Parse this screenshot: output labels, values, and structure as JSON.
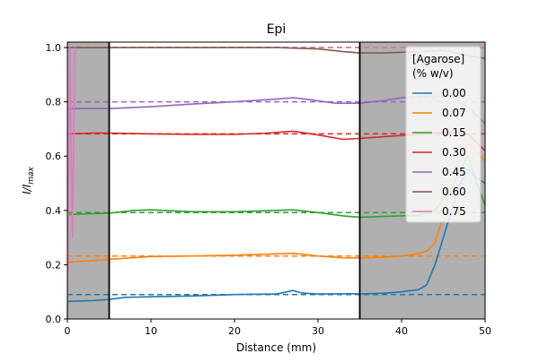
{
  "chart_data": {
    "type": "line",
    "title": "Epi",
    "xlabel": "Distance (mm)",
    "ylabel_main": "I/I",
    "ylabel_sub": "max",
    "xlim": [
      0,
      50
    ],
    "ylim": [
      0,
      1.02
    ],
    "xticks": [
      0,
      10,
      20,
      30,
      40,
      50
    ],
    "yticks": [
      0.0,
      0.2,
      0.4,
      0.6,
      0.8,
      1.0
    ],
    "xtick_labels": [
      "0",
      "10",
      "20",
      "30",
      "40",
      "50"
    ],
    "ytick_labels": [
      "0.0",
      "0.2",
      "0.4",
      "0.6",
      "0.8",
      "1.0"
    ],
    "shaded_regions": [
      [
        0,
        5
      ],
      [
        35,
        50
      ]
    ],
    "shade_color": "#b0b0b0",
    "boundary_lines": [
      5,
      35
    ],
    "legend": {
      "title_line1": "[Agarose]",
      "title_line2": "(% w/v)",
      "placement": "upper-right"
    },
    "series": [
      {
        "name": "0.00",
        "color": "#1f77b4",
        "reference": 0.09,
        "points": [
          [
            0,
            0.065
          ],
          [
            3,
            0.068
          ],
          [
            5,
            0.072
          ],
          [
            7,
            0.08
          ],
          [
            10,
            0.082
          ],
          [
            15,
            0.085
          ],
          [
            20,
            0.09
          ],
          [
            25,
            0.092
          ],
          [
            26,
            0.098
          ],
          [
            27,
            0.105
          ],
          [
            28,
            0.096
          ],
          [
            30,
            0.092
          ],
          [
            34,
            0.093
          ],
          [
            35,
            0.092
          ],
          [
            38,
            0.095
          ],
          [
            40,
            0.1
          ],
          [
            42,
            0.108
          ],
          [
            43,
            0.125
          ],
          [
            44,
            0.2
          ],
          [
            45,
            0.3
          ],
          [
            46,
            0.4
          ],
          [
            47,
            0.5
          ],
          [
            48,
            0.55
          ],
          [
            49,
            0.52
          ],
          [
            50,
            0.5
          ]
        ]
      },
      {
        "name": "0.07",
        "color": "#ff7f0e",
        "reference": 0.232,
        "points": [
          [
            0,
            0.21
          ],
          [
            3,
            0.215
          ],
          [
            5,
            0.22
          ],
          [
            10,
            0.23
          ],
          [
            15,
            0.232
          ],
          [
            20,
            0.235
          ],
          [
            25,
            0.24
          ],
          [
            27,
            0.242
          ],
          [
            30,
            0.232
          ],
          [
            33,
            0.225
          ],
          [
            35,
            0.225
          ],
          [
            38,
            0.228
          ],
          [
            40,
            0.232
          ],
          [
            42,
            0.24
          ],
          [
            43,
            0.25
          ],
          [
            44,
            0.28
          ],
          [
            45,
            0.38
          ],
          [
            46,
            0.5
          ],
          [
            47,
            0.6
          ],
          [
            48,
            0.65
          ],
          [
            49,
            0.62
          ],
          [
            50,
            0.58
          ]
        ]
      },
      {
        "name": "0.15",
        "color": "#2ca02c",
        "reference": 0.392,
        "points": [
          [
            0,
            0.385
          ],
          [
            3,
            0.388
          ],
          [
            5,
            0.39
          ],
          [
            8,
            0.4
          ],
          [
            10,
            0.402
          ],
          [
            15,
            0.395
          ],
          [
            20,
            0.395
          ],
          [
            25,
            0.4
          ],
          [
            27,
            0.402
          ],
          [
            30,
            0.392
          ],
          [
            33,
            0.38
          ],
          [
            35,
            0.375
          ],
          [
            38,
            0.378
          ],
          [
            42,
            0.382
          ],
          [
            44,
            0.4
          ],
          [
            46,
            0.48
          ],
          [
            47,
            0.55
          ],
          [
            48,
            0.6
          ],
          [
            49,
            0.5
          ],
          [
            50,
            0.42
          ]
        ]
      },
      {
        "name": "0.30",
        "color": "#d62728",
        "reference": 0.682,
        "points": [
          [
            0,
            0.682
          ],
          [
            3,
            0.685
          ],
          [
            5,
            0.685
          ],
          [
            10,
            0.682
          ],
          [
            15,
            0.68
          ],
          [
            20,
            0.68
          ],
          [
            24,
            0.685
          ],
          [
            27,
            0.692
          ],
          [
            30,
            0.678
          ],
          [
            33,
            0.662
          ],
          [
            35,
            0.665
          ],
          [
            38,
            0.672
          ],
          [
            42,
            0.68
          ],
          [
            46,
            0.69
          ],
          [
            48,
            0.68
          ],
          [
            50,
            0.62
          ]
        ]
      },
      {
        "name": "0.45",
        "color": "#9467bd",
        "reference": 0.8,
        "points": [
          [
            0,
            0.775
          ],
          [
            5,
            0.775
          ],
          [
            10,
            0.782
          ],
          [
            15,
            0.792
          ],
          [
            20,
            0.8
          ],
          [
            25,
            0.81
          ],
          [
            27,
            0.815
          ],
          [
            29,
            0.808
          ],
          [
            32,
            0.795
          ],
          [
            35,
            0.795
          ],
          [
            38,
            0.805
          ],
          [
            40,
            0.815
          ],
          [
            43,
            0.82
          ],
          [
            46,
            0.82
          ],
          [
            48,
            0.78
          ],
          [
            50,
            0.72
          ]
        ]
      },
      {
        "name": "0.60",
        "color": "#8c564b",
        "reference": 1.0,
        "points": [
          [
            0,
            1.0
          ],
          [
            5,
            1.0
          ],
          [
            10,
            1.0
          ],
          [
            20,
            1.0
          ],
          [
            25,
            1.0
          ],
          [
            30,
            0.995
          ],
          [
            33,
            0.985
          ],
          [
            35,
            0.98
          ],
          [
            38,
            0.98
          ],
          [
            42,
            0.985
          ],
          [
            45,
            0.99
          ],
          [
            48,
            0.97
          ],
          [
            50,
            0.96
          ]
        ]
      },
      {
        "name": "0.75",
        "color": "#e377c2",
        "reference": 1.0,
        "points": [
          [
            0,
            0.0
          ],
          [
            0.3,
            1.0
          ],
          [
            0.6,
            0.3
          ],
          [
            0.9,
            1.0
          ]
        ]
      }
    ]
  }
}
